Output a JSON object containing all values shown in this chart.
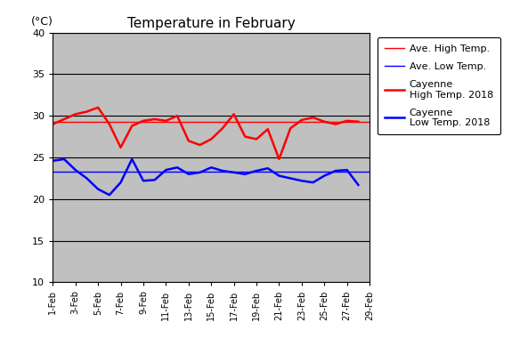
{
  "title": "Temperature in February",
  "ylabel": "(°C)",
  "ylim": [
    10,
    40
  ],
  "yticks": [
    10,
    15,
    20,
    25,
    30,
    35,
    40
  ],
  "x_labels": [
    "1-Feb",
    "3-Feb",
    "5-Feb",
    "7-Feb",
    "9-Feb",
    "11-Feb",
    "13-Feb",
    "15-Feb",
    "17-Feb",
    "19-Feb",
    "21-Feb",
    "23-Feb",
    "25-Feb",
    "27-Feb",
    "29-Feb"
  ],
  "ave_high": 29.3,
  "ave_low": 23.3,
  "high_2018": [
    29.0,
    29.6,
    30.2,
    30.5,
    31.0,
    29.0,
    26.2,
    28.8,
    29.4,
    29.6,
    29.4,
    30.0,
    27.0,
    26.5,
    27.2,
    28.5,
    30.2,
    27.5,
    27.2,
    28.4,
    24.8,
    28.5,
    29.5,
    29.8,
    29.3,
    29.0,
    29.4,
    29.3
  ],
  "low_2018": [
    24.6,
    24.8,
    23.5,
    22.5,
    21.2,
    20.5,
    22.0,
    24.8,
    22.2,
    22.3,
    23.5,
    23.8,
    23.0,
    23.2,
    23.8,
    23.4,
    23.2,
    23.0,
    23.4,
    23.7,
    22.8,
    22.5,
    22.2,
    22.0,
    22.8,
    23.4,
    23.5,
    21.7
  ],
  "ave_high_color": "#ff0000",
  "ave_low_color": "#0000ff",
  "high_2018_color": "#ff0000",
  "low_2018_color": "#0000ff",
  "bg_color": "#c0c0c0",
  "legend_labels": [
    "Ave. High Temp.",
    "Ave. Low Temp.",
    "Cayenne\nHigh Temp. 2018",
    "Cayenne\nLow Temp. 2018"
  ],
  "ave_high_linewidth": 1.0,
  "ave_low_linewidth": 1.0,
  "data_linewidth": 1.8
}
